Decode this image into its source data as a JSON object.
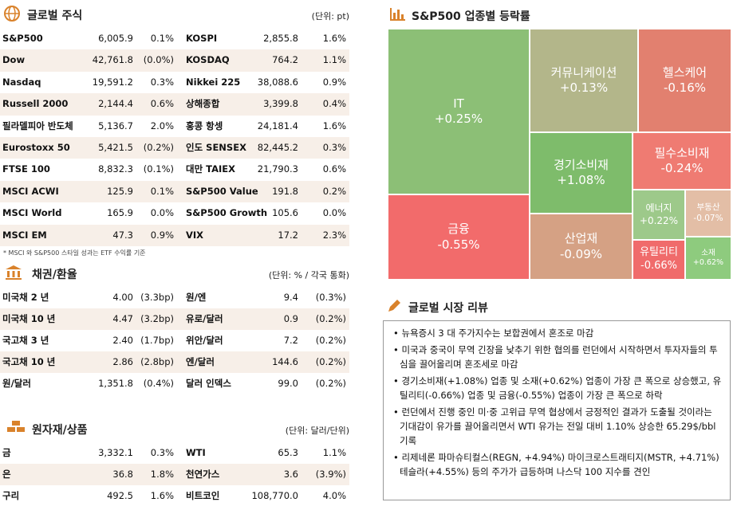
{
  "global_stocks": {
    "title": "글로벌 주식",
    "unit": "(단위: pt)",
    "rows": [
      [
        "S&P500",
        "6,005.9",
        "0.1%",
        "KOSPI",
        "2,855.8",
        "1.6%"
      ],
      [
        "Dow",
        "42,761.8",
        "(0.0%)",
        "KOSDAQ",
        "764.2",
        "1.1%"
      ],
      [
        "Nasdaq",
        "19,591.2",
        "0.3%",
        "Nikkei 225",
        "38,088.6",
        "0.9%"
      ],
      [
        "Russell 2000",
        "2,144.4",
        "0.6%",
        "상해종합",
        "3,399.8",
        "0.4%"
      ],
      [
        "필라델피아 반도체",
        "5,136.7",
        "2.0%",
        "홍콩 항셍",
        "24,181.4",
        "1.6%"
      ],
      [
        "Eurostoxx 50",
        "5,421.5",
        "(0.2%)",
        "인도 SENSEX",
        "82,445.2",
        "0.3%"
      ],
      [
        "FTSE 100",
        "8,832.3",
        "(0.1%)",
        "대만 TAIEX",
        "21,790.3",
        "0.6%"
      ],
      [
        "MSCI ACWI",
        "125.9",
        "0.1%",
        "S&P500 Value",
        "191.8",
        "0.2%"
      ],
      [
        "MSCI World",
        "165.9",
        "0.0%",
        "S&P500 Growth",
        "105.6",
        "0.0%"
      ],
      [
        "MSCI EM",
        "47.3",
        "0.9%",
        "VIX",
        "17.2",
        "2.3%"
      ]
    ],
    "note": "* MSCI 와 S&P500 스타일 성과는 ETF 수익률 기준"
  },
  "bonds_fx": {
    "title": "채권/환율",
    "unit": "(단위: % / 각국 통화)",
    "rows": [
      [
        "미국채 2 년",
        "4.00",
        "(3.3bp)",
        "원/엔",
        "9.4",
        "(0.3%)"
      ],
      [
        "미국채 10 년",
        "4.47",
        "(3.2bp)",
        "유로/달러",
        "0.9",
        "(0.2%)"
      ],
      [
        "국고채 3 년",
        "2.40",
        "(1.7bp)",
        "위안/달러",
        "7.2",
        "(0.2%)"
      ],
      [
        "국고채 10 년",
        "2.86",
        "(2.8bp)",
        "엔/달러",
        "144.6",
        "(0.2%)"
      ],
      [
        "원/달러",
        "1,351.8",
        "(0.4%)",
        "달러 인덱스",
        "99.0",
        "(0.2%)"
      ]
    ]
  },
  "commodities": {
    "title": "원자재/상품",
    "unit": "(단위: 달러/단위)",
    "rows": [
      [
        "금",
        "3,332.1",
        "0.3%",
        "WTI",
        "65.3",
        "1.1%"
      ],
      [
        "은",
        "36.8",
        "1.8%",
        "천연가스",
        "3.6",
        "(3.9%)"
      ],
      [
        "구리",
        "492.5",
        "1.6%",
        "비트코인",
        "108,770.0",
        "4.0%"
      ]
    ]
  },
  "sector_treemap": {
    "title": "S&P500 업종별 등락률",
    "tiles": [
      {
        "label": "IT",
        "value": "+0.25%"
      },
      {
        "label": "커뮤니케이션",
        "value": "+0.13%"
      },
      {
        "label": "헬스케어",
        "value": "-0.16%"
      },
      {
        "label": "경기소비재",
        "value": "+1.08%"
      },
      {
        "label": "필수소비재",
        "value": "-0.24%"
      },
      {
        "label": "금융",
        "value": "-0.55%"
      },
      {
        "label": "산업재",
        "value": "-0.09%"
      },
      {
        "label": "에너지",
        "value": "+0.22%"
      },
      {
        "label": "부동산",
        "value": "-0.07%"
      },
      {
        "label": "유틸리티",
        "value": "-0.66%"
      },
      {
        "label": "소재",
        "value": "+0.62%"
      }
    ]
  },
  "market_review": {
    "title": "글로벌 시장 리뷰",
    "items": [
      "뉴욕증시 3 대 주가지수는 보합권에서 혼조로 마감",
      "미국과 중국이 무역 긴장을 낮추기 위한 협의를 런던에서 시작하면서 투자자들의 투심을 끌어올리며 혼조세로 마감",
      "경기소비재(+1.08%) 업종 및 소재(+0.62%) 업종이 가장 큰 폭으로 상승했고, 유틸리티(-0.66%) 업종 및 금융(-0.55%) 업종이 가장 큰 폭으로 하락",
      "런던에서 진행 중인 미·중 고위급 무역 협상에서 긍정적인 결과가 도출될 것이라는 기대감이 유가를 끌어올리면서 WTI 유가는 전일 대비 1.10% 상승한 65.29$/bbl 기록",
      "리제네론 파마슈티컬스(REGN, +4.94%) 마이크로스트래티지(MSTR, +4.71%) 테슬라(+4.55%) 등의 주가가 급등하며 나스닥 100 지수를 견인"
    ]
  }
}
